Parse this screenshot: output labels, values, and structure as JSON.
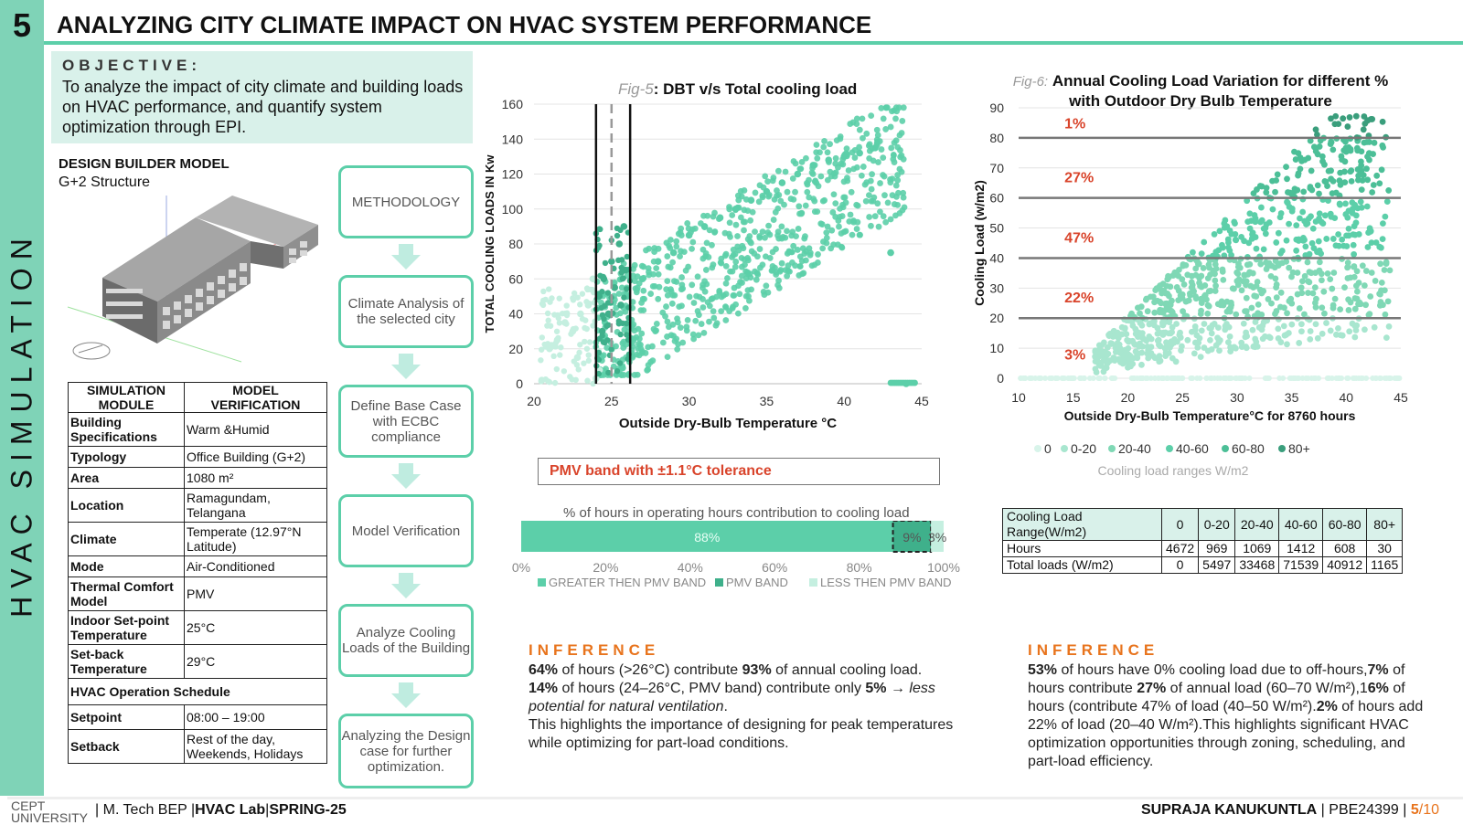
{
  "header": {
    "number": "5",
    "title": "ANALYZING CITY CLIMATE IMPACT ON HVAC SYSTEM PERFORMANCE",
    "sidebar_text": "HVAC SIMULATION"
  },
  "objective": {
    "heading": "OBJECTIVE:",
    "text": "To analyze the impact of city climate and building loads on HVAC performance, and quantify system optimization through EPI."
  },
  "design_model": {
    "title": "DESIGN BUILDER MODEL",
    "subtitle": "G+2 Structure"
  },
  "sim_table": {
    "headers": [
      "SIMULATION MODULE",
      "MODEL VERIFICATION"
    ],
    "rows": [
      {
        "k": "Building Specifications",
        "v": "Warm &Humid"
      },
      {
        "k": "Typology",
        "v": "Office Building (G+2)"
      },
      {
        "k": "Area",
        "v": "1080 m²"
      },
      {
        "k": "Location",
        "v": "Ramagundam, Telangana"
      },
      {
        "k": "Climate",
        "v": "Temperate (12.97°N Latitude)"
      },
      {
        "k": "Mode",
        "v": "Air-Conditioned"
      },
      {
        "k": "Thermal Comfort Model",
        "v": "PMV"
      },
      {
        "k": "Indoor Set-point Temperature",
        "v": "25°C"
      },
      {
        "k": "Set-back Temperature",
        "v": "29°C"
      },
      {
        "k": "HVAC Operation Schedule",
        "v": ""
      },
      {
        "k": "Setpoint",
        "v": "08:00 – 19:00"
      },
      {
        "k": "Setback",
        "v": "Rest of the day, Weekends, Holidays"
      }
    ]
  },
  "flow": [
    "METHODOLOGY",
    "Climate Analysis of the selected city",
    "Define Base Case with ECBC compliance",
    "Model Verification",
    "Analyze Cooling Loads of the Building",
    "Analyzing the Design case for further optimization."
  ],
  "fig5": {
    "fig_label": "Fig-5",
    "title": ": DBT v/s Total cooling load",
    "pmv_label": "PMV band with ±1.1°C tolerance"
  },
  "fig6": {
    "fig_label": "Fig-6:",
    "title_line1": "Annual Cooling Load Variation for different  %",
    "title_line2": "with Outdoor Dry Bulb Temperature",
    "band_labels": [
      "1%",
      "27%",
      "47%",
      "22%",
      "3%"
    ],
    "legend_caption": "Cooling load ranges W/m2"
  },
  "stack": {
    "title": "% of hours in operating hours contribution to cooling load",
    "segments": [
      {
        "label": "88%",
        "value": 88,
        "color": "#5ccfa9",
        "name": "GREATER THEN PMV BAND"
      },
      {
        "label": "9%",
        "value": 9,
        "color": "#3fb08b",
        "name": "PMV BAND"
      },
      {
        "label": "3%",
        "value": 3,
        "color": "#c5efe0",
        "name": "LESS THEN PMV BAND"
      }
    ],
    "ticks": [
      "0%",
      "20%",
      "40%",
      "60%",
      "80%",
      "100%"
    ]
  },
  "chart_data": [
    {
      "type": "scatter",
      "title": ": DBT v/s Total cooling load",
      "xlabel": "Outside Dry-Bulb Temperature °C",
      "ylabel": "TOTAL COOLING LOADS IN Kw",
      "xlim": [
        20,
        45
      ],
      "ylim": [
        0,
        160
      ],
      "xticks": [
        "20",
        "25",
        "30",
        "35",
        "40",
        "45"
      ],
      "yticks": [
        "0",
        "20",
        "40",
        "60",
        "80",
        "100",
        "120",
        "140",
        "160"
      ],
      "series": [
        {
          "color": "#c5efe0",
          "x": [
            20.5,
            21.5,
            22.5,
            23,
            23.5,
            22,
            21,
            24,
            23.8,
            22.8
          ],
          "y": [
            2,
            25,
            30,
            40,
            45,
            35,
            20,
            3,
            60,
            15
          ]
        },
        {
          "color": "#3fb08b",
          "x": [
            24.2,
            24.5,
            25,
            25.5,
            25.8,
            24.8,
            25.2,
            24.4,
            25.6,
            25.9
          ],
          "y": [
            50,
            60,
            70,
            80,
            90,
            40,
            55,
            30,
            45,
            65
          ]
        },
        {
          "color": "#5ccfa9",
          "x": [
            26,
            27,
            28,
            29,
            30,
            31,
            32,
            33,
            34,
            35,
            36,
            37,
            38,
            39,
            40,
            41,
            42,
            43,
            44
          ],
          "y": [
            50,
            60,
            70,
            75,
            85,
            90,
            95,
            100,
            105,
            110,
            115,
            120,
            125,
            128,
            130,
            132,
            135,
            75,
            0
          ]
        }
      ],
      "vlines": [
        24,
        25,
        26.2
      ]
    },
    {
      "type": "scatter",
      "title": "Annual Cooling Load Variation for different  % with Outdoor Dry Bulb Temperature",
      "xlabel": "Outside Dry-Bulb Temperature°C for 8760 hours",
      "ylabel": "Cooling Load (w/m2)",
      "xlim": [
        10,
        45
      ],
      "ylim": [
        0,
        90
      ],
      "xticks": [
        "10",
        "15",
        "20",
        "25",
        "30",
        "35",
        "40",
        "45"
      ],
      "yticks": [
        "0",
        "10",
        "20",
        "30",
        "40",
        "50",
        "60",
        "70",
        "80",
        "90"
      ],
      "hlines": [
        20,
        40,
        60,
        80
      ],
      "series": [
        {
          "name": "0",
          "color": "#d8f4ea"
        },
        {
          "name": "0-20",
          "color": "#a8e6cf"
        },
        {
          "name": "20-40",
          "color": "#7fd8b5"
        },
        {
          "name": "40-60",
          "color": "#5ccfa9"
        },
        {
          "name": "60-80",
          "color": "#4cbf97"
        },
        {
          "name": "80+",
          "color": "#3a9e7c"
        }
      ]
    }
  ],
  "load_table": {
    "rows": [
      [
        "Cooling Load Range(W/m2)",
        "0",
        "0-20",
        "20-40",
        "40-60",
        "60-80",
        "80+"
      ],
      [
        "Hours",
        "4672",
        "969",
        "1069",
        "1412",
        "608",
        "30"
      ],
      [
        "Total loads (W/m2)",
        "0",
        "5497",
        "33468",
        "71539",
        "40912",
        "1165"
      ]
    ]
  },
  "inference1": {
    "heading": "INFERENCE",
    "l1b": "64%",
    "l1a": " of hours (>26°C) contribute ",
    "l1c": "93%",
    "l1d": " of annual cooling load.",
    "l2b": "14%",
    "l2a": " of hours (24–26°C, PMV band) contribute only ",
    "l2c": "5%",
    "l2d": " → ",
    "l2e": "less potential for natural ventilation",
    "l3": "This highlights the importance of designing for peak temperatures while optimizing for part-load conditions."
  },
  "inference2": {
    "heading": "INFERENCE",
    "b1": "53%",
    "t1": " of hours have 0% cooling load due to off-hours,",
    "b2": "7%",
    "t2": " of hours  contribute ",
    "b3": "27%",
    "t3": " of annual load (60–70 W/m²),1",
    "b4": "6%",
    "t4": " of hours (contribute 47% of load (40–50 W/m²).",
    "b5": "2%",
    "t5": " of hours  add 22% of load (20–40 W/m²).This highlights significant HVAC optimization opportunities through zoning, scheduling, and part-load efficiency."
  },
  "footer": {
    "logo_top": "CEPT",
    "logo_bottom": "UNIVERSITY",
    "program": "M. Tech BEP",
    "lab": "HVAC Lab",
    "term": "SPRING-25",
    "author": "SUPRAJA KANUKUNTLA",
    "id": "PBE24399",
    "page": "5",
    "total": "/10"
  }
}
